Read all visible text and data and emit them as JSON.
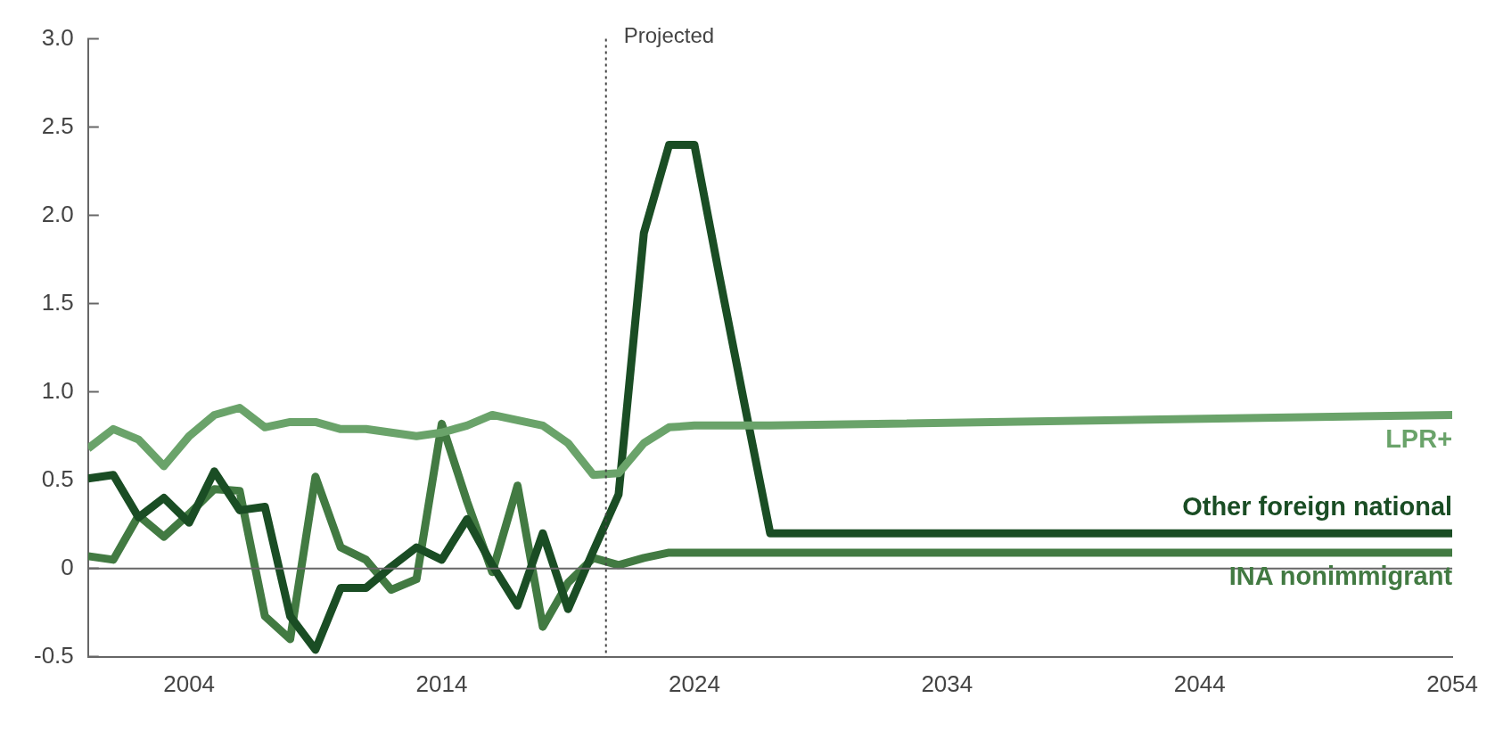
{
  "chart_data": {
    "type": "line",
    "x": [
      2000,
      2001,
      2002,
      2003,
      2004,
      2005,
      2006,
      2007,
      2008,
      2009,
      2010,
      2011,
      2012,
      2013,
      2014,
      2015,
      2016,
      2017,
      2018,
      2019,
      2020,
      2021,
      2022,
      2023,
      2024,
      2025,
      2026,
      2027,
      2054
    ],
    "series": [
      {
        "name": "LPR+",
        "color": "#6aa36a",
        "values": [
          0.68,
          0.79,
          0.73,
          0.58,
          0.75,
          0.87,
          0.91,
          0.8,
          0.83,
          0.83,
          0.79,
          0.79,
          0.77,
          0.75,
          0.77,
          0.81,
          0.87,
          0.84,
          0.81,
          0.71,
          0.53,
          0.54,
          0.71,
          0.8,
          0.81,
          0.81,
          0.81,
          0.81,
          0.87
        ]
      },
      {
        "name": "Other foreign national",
        "color": "#1a4d24",
        "values": [
          0.51,
          0.53,
          0.29,
          0.4,
          0.26,
          0.55,
          0.33,
          0.35,
          -0.27,
          -0.46,
          -0.11,
          -0.11,
          0.01,
          0.12,
          0.05,
          0.28,
          0.02,
          -0.21,
          0.2,
          -0.23,
          0.1,
          0.42,
          1.9,
          2.4,
          2.4,
          1.65,
          0.92,
          0.2,
          0.2
        ]
      },
      {
        "name": "INA nonimmigrant",
        "color": "#427a42",
        "values": [
          0.07,
          0.05,
          0.3,
          0.18,
          0.31,
          0.45,
          0.44,
          -0.27,
          -0.4,
          0.52,
          0.12,
          0.05,
          -0.12,
          -0.06,
          0.82,
          0.38,
          -0.02,
          0.47,
          -0.33,
          -0.08,
          0.06,
          0.02,
          0.06,
          0.09,
          0.09,
          0.09,
          0.09,
          0.09,
          0.09
        ]
      }
    ],
    "xlim": [
      2000,
      2054
    ],
    "xticks": [
      2004,
      2014,
      2024,
      2034,
      2044,
      2054
    ],
    "ylim": [
      -0.5,
      3
    ],
    "yticks": [
      -0.5,
      {
        "value": 0,
        "label": "0"
      },
      0.5,
      {
        "value": 1,
        "label": "1.0"
      },
      1.5,
      {
        "value": 2,
        "label": "2.0"
      },
      2.5,
      {
        "value": 3,
        "label": "3.0"
      }
    ],
    "ref_lines": [
      {
        "axis": "y",
        "value": 0,
        "color": "#666666"
      },
      {
        "axis": "x",
        "value": 2020.5,
        "label": "Projected",
        "color": "#444444",
        "line_style": "dotted"
      }
    ],
    "grid": false,
    "legend": "right",
    "marker": "none",
    "line_style": "solid"
  }
}
